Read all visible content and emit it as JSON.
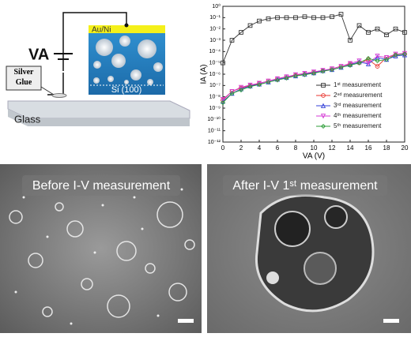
{
  "schematic": {
    "voltage": "VA",
    "electrode": "Au/Ni",
    "glue": "Silver Glue",
    "substrate": "Si (100)",
    "base": "Glass"
  },
  "chart_data": {
    "type": "line",
    "xlabel": "VA (V)",
    "ylabel": "IA (A)",
    "log_y": true,
    "legend": "lower right",
    "xlim": [
      0,
      20
    ],
    "xticks": [
      0,
      2,
      4,
      6,
      8,
      10,
      12,
      14,
      16,
      18,
      20
    ],
    "ylim": [
      1e-12,
      1
    ],
    "yticks": [
      {
        "value": 1e-12,
        "label": "10⁻¹²"
      },
      {
        "value": 1e-11,
        "label": "10⁻¹¹"
      },
      {
        "value": 1e-10,
        "label": "10⁻¹⁰"
      },
      {
        "value": 1e-09,
        "label": "10⁻⁹"
      },
      {
        "value": 1e-08,
        "label": "10⁻⁸"
      },
      {
        "value": 1e-07,
        "label": "10⁻⁷"
      },
      {
        "value": 1e-06,
        "label": "10⁻⁶"
      },
      {
        "value": 1e-05,
        "label": "10⁻⁵"
      },
      {
        "value": 0.0001,
        "label": "10⁻⁴"
      },
      {
        "value": 0.001,
        "label": "10⁻³"
      },
      {
        "value": 0.01,
        "label": "10⁻²"
      },
      {
        "value": 0.1,
        "label": "10⁻¹"
      },
      {
        "value": 1,
        "label": "10⁰"
      }
    ],
    "x": [
      0,
      1,
      2,
      3,
      4,
      5,
      6,
      7,
      8,
      9,
      10,
      11,
      12,
      13,
      14,
      15,
      16,
      17,
      18,
      19,
      20
    ],
    "series": [
      {
        "name": "1ˢᵗ measurement",
        "color": "#333333",
        "marker": "square",
        "values": [
          1e-05,
          0.001,
          0.005,
          0.02,
          0.05,
          0.08,
          0.1,
          0.1,
          0.1,
          0.12,
          0.1,
          0.1,
          0.12,
          0.2,
          0.001,
          0.02,
          0.005,
          0.01,
          0.003,
          0.01,
          0.005
        ]
      },
      {
        "name": "2ⁿᵈ measurement",
        "color": "#e8352f",
        "marker": "circle",
        "values": [
          5e-09,
          3e-08,
          6e-08,
          1e-07,
          1.5e-07,
          2.5e-07,
          4e-07,
          6e-07,
          8e-07,
          1e-06,
          1.5e-06,
          2e-06,
          3e-06,
          5e-06,
          8e-06,
          1e-05,
          2e-05,
          5e-06,
          3e-05,
          5e-05,
          6e-05
        ]
      },
      {
        "name": "3ʳᵈ measurement",
        "color": "#3340d8",
        "marker": "triangle",
        "values": [
          4e-09,
          2e-08,
          5e-08,
          9e-08,
          1.3e-07,
          2e-07,
          3.5e-07,
          5e-07,
          7e-07,
          1e-06,
          1.3e-06,
          2e-06,
          2.5e-06,
          4e-06,
          7e-06,
          1.2e-05,
          8e-06,
          3e-05,
          2e-05,
          4e-05,
          5e-05
        ]
      },
      {
        "name": "4ᵗʰ measurement",
        "color": "#d43ad4",
        "marker": "down-triangle",
        "values": [
          6e-09,
          3e-08,
          7e-08,
          1.1e-07,
          1.6e-07,
          2.5e-07,
          4e-07,
          6e-07,
          9e-07,
          1.2e-06,
          1.6e-06,
          2.2e-06,
          3e-06,
          5e-06,
          9e-06,
          1.5e-05,
          1e-05,
          4e-05,
          3e-05,
          6e-05,
          7e-05
        ]
      },
      {
        "name": "5ᵗʰ measurement",
        "color": "#2f9e3a",
        "marker": "diamond",
        "values": [
          3e-09,
          2e-08,
          4e-08,
          8e-08,
          1.2e-07,
          2e-07,
          3e-07,
          4.5e-07,
          7e-07,
          9e-07,
          1.2e-06,
          1.8e-06,
          2.5e-06,
          4e-06,
          6e-06,
          1e-05,
          2.5e-05,
          1.5e-05,
          2e-05,
          5e-05,
          6e-05
        ]
      }
    ]
  },
  "images": {
    "before": "Before I-V measurement",
    "after": "After I-V 1ˢᵗ measurement"
  }
}
